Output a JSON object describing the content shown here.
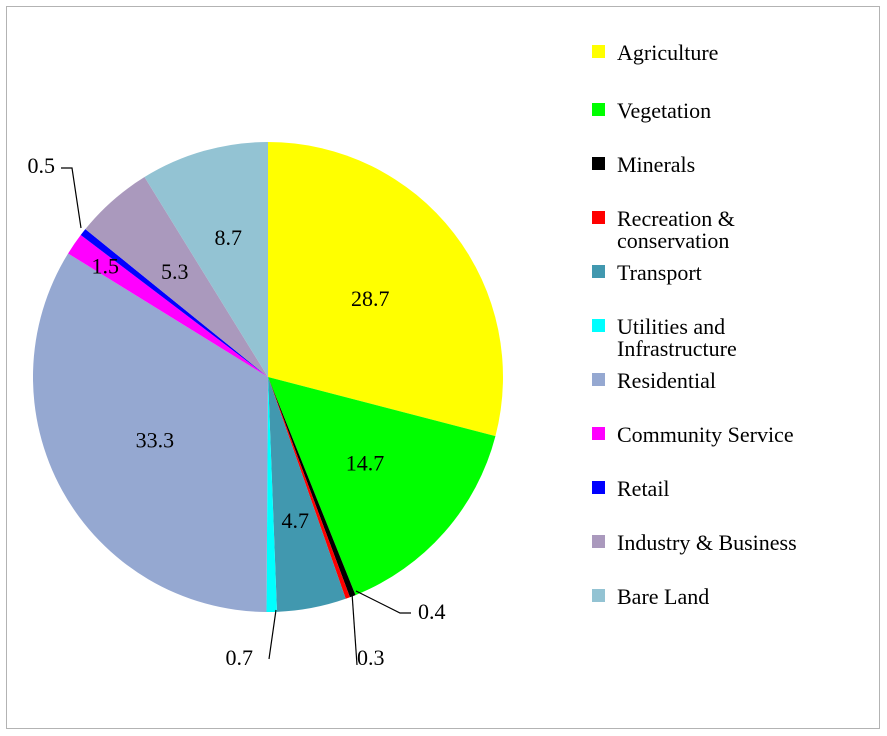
{
  "chart_data": {
    "type": "pie",
    "title": "",
    "categories": [
      "Agriculture",
      "Vegetation",
      "Minerals",
      "Recreation & conservation",
      "Transport",
      "Utilities and Infrastructure",
      "Residential",
      "Community Service",
      "Retail",
      "Industry & Business",
      "Bare Land"
    ],
    "legend_lines": [
      [
        "Agriculture"
      ],
      [
        "Vegetation"
      ],
      [
        "Minerals"
      ],
      [
        "Recreation &",
        "conservation"
      ],
      [
        "Transport"
      ],
      [
        "Utilities and",
        "Infrastructure"
      ],
      [
        "Residential"
      ],
      [
        "Community Service"
      ],
      [
        "Retail"
      ],
      [
        "Industry & Business"
      ],
      [
        "Bare Land"
      ]
    ],
    "values": [
      28.7,
      14.7,
      0.4,
      0.3,
      4.7,
      0.7,
      33.3,
      1.5,
      0.5,
      5.3,
      8.7
    ],
    "data_labels": [
      "28.7",
      "14.7",
      "0.4",
      "0.3",
      "4.7",
      "0.7",
      "33.3",
      "1.5",
      "0.5",
      "5.3",
      "8.7"
    ],
    "colors": [
      "#ffff00",
      "#00ff00",
      "#000000",
      "#ff0000",
      "#4198af",
      "#00ffff",
      "#95a8d1",
      "#ff00ff",
      "#0000ff",
      "#aa99bd",
      "#93c3d3"
    ],
    "start_angle": "12 o'clock",
    "direction": "clockwise",
    "legend_position": "right"
  }
}
